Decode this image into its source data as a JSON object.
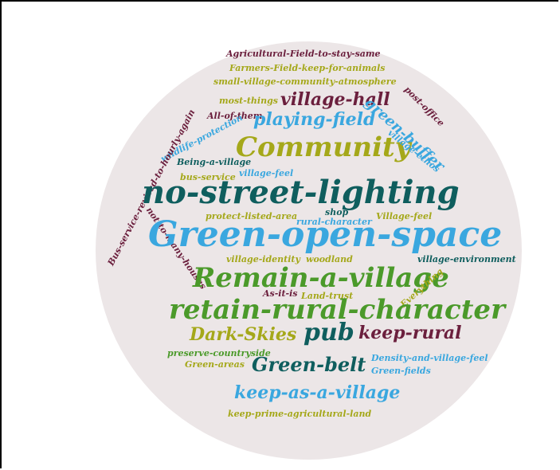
{
  "colors": {
    "maroon": "#6b1f3d",
    "teal": "#0f5e5e",
    "blue": "#3aa7df",
    "olive": "#a5a81a",
    "green": "#4b9a2a",
    "background_circle": "#ece6e7"
  },
  "words": [
    {
      "text": "Agricultural-Field-to-stay-same",
      "color": "maroon"
    },
    {
      "text": "Farmers-Field-keep-for-animals",
      "color": "olive"
    },
    {
      "text": "small-village-community-atmosphere",
      "color": "olive"
    },
    {
      "text": "most-things",
      "color": "olive"
    },
    {
      "text": "village-hall",
      "color": "maroon"
    },
    {
      "text": "post-office",
      "color": "maroon"
    },
    {
      "text": "All-of-them",
      "color": "maroon"
    },
    {
      "text": "playing-field",
      "color": "blue"
    },
    {
      "text": "green-buffer",
      "color": "blue"
    },
    {
      "text": "wildlife-protection",
      "color": "blue"
    },
    {
      "text": "Community",
      "color": "olive"
    },
    {
      "text": "village-ethos",
      "color": "blue"
    },
    {
      "text": "Being-a-village",
      "color": "teal"
    },
    {
      "text": "village-feel",
      "color": "blue"
    },
    {
      "text": "bus-service",
      "color": "olive"
    },
    {
      "text": "Bus-service-revised-to-hourly-again",
      "color": "maroon"
    },
    {
      "text": "no-street-lighting",
      "color": "teal"
    },
    {
      "text": "shop",
      "color": "teal"
    },
    {
      "text": "protect-listed-area",
      "color": "olive"
    },
    {
      "text": "rural-character",
      "color": "blue"
    },
    {
      "text": "Village-feel",
      "color": "olive"
    },
    {
      "text": "not-to-many-houses",
      "color": "maroon"
    },
    {
      "text": "Green-open-space",
      "color": "blue"
    },
    {
      "text": "village-identity",
      "color": "olive"
    },
    {
      "text": "woodland",
      "color": "olive"
    },
    {
      "text": "village-environment",
      "color": "teal"
    },
    {
      "text": "Remain-a-village",
      "color": "green"
    },
    {
      "text": "As-it-is",
      "color": "maroon"
    },
    {
      "text": "Land-trust",
      "color": "olive"
    },
    {
      "text": "Everything",
      "color": "olive"
    },
    {
      "text": "retain-rural-character",
      "color": "green"
    },
    {
      "text": "Dark-Skies",
      "color": "olive"
    },
    {
      "text": "pub",
      "color": "teal"
    },
    {
      "text": "keep-rural",
      "color": "maroon"
    },
    {
      "text": "preserve-countryside",
      "color": "green"
    },
    {
      "text": "Green-areas",
      "color": "olive"
    },
    {
      "text": "Green-belt",
      "color": "teal"
    },
    {
      "text": "Density-and-village-feel",
      "color": "blue"
    },
    {
      "text": "Green-fields",
      "color": "blue"
    },
    {
      "text": "keep-as-a-village",
      "color": "blue"
    },
    {
      "text": "keep-prime-agricultural-land",
      "color": "olive"
    }
  ]
}
